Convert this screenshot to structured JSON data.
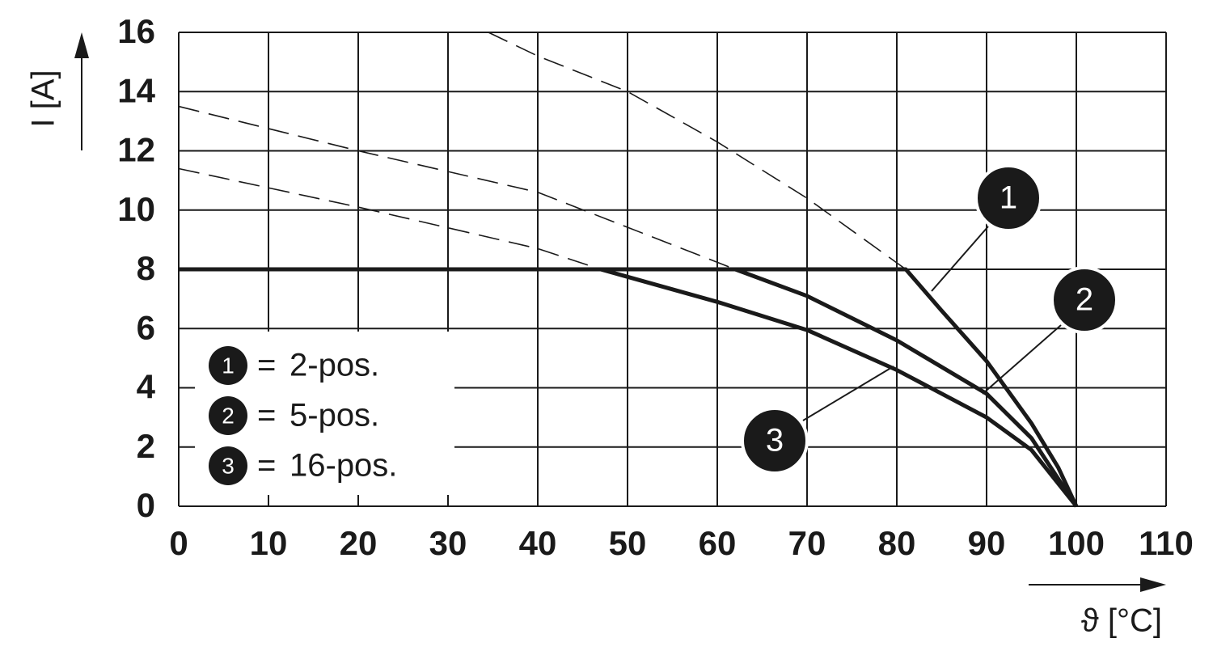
{
  "chart_data": {
    "type": "line",
    "x_label": "ϑ [°C]",
    "y_label": "I [A]",
    "xlim": [
      0,
      110
    ],
    "xticks": [
      0,
      10,
      20,
      30,
      40,
      50,
      60,
      70,
      80,
      90,
      100,
      110
    ],
    "ylim": [
      0,
      16
    ],
    "yticks": [
      0,
      2,
      4,
      6,
      8,
      10,
      12,
      14,
      16
    ],
    "grid": true,
    "legend_position": "lower left",
    "legend_separator": "=",
    "series": [
      {
        "name": "2-pos.",
        "label": "1",
        "color": "#1a1a1a",
        "x": [
          0,
          81,
          85,
          90,
          95,
          98,
          100
        ],
        "values": [
          8,
          8,
          6.6,
          4.9,
          2.8,
          1.3,
          0
        ],
        "extrapolated": {
          "x": [
            34.5,
            40,
            50,
            60,
            70,
            81
          ],
          "values": [
            16,
            15.2,
            14,
            12.3,
            10.4,
            8
          ]
        }
      },
      {
        "name": "5-pos.",
        "label": "2",
        "color": "#1a1a1a",
        "x": [
          62,
          70,
          80,
          90,
          95,
          100
        ],
        "values": [
          8,
          7.1,
          5.6,
          3.8,
          2.3,
          0
        ],
        "extrapolated": {
          "x": [
            0,
            20,
            40,
            62
          ],
          "values": [
            13.5,
            12,
            10.6,
            8
          ]
        }
      },
      {
        "name": "16-pos.",
        "label": "3",
        "color": "#1a1a1a",
        "x": [
          47,
          60,
          70,
          80,
          90,
          95,
          100
        ],
        "values": [
          8,
          6.9,
          5.95,
          4.6,
          3.0,
          1.9,
          0
        ],
        "extrapolated": {
          "x": [
            0,
            20,
            40,
            47
          ],
          "values": [
            11.4,
            10.1,
            8.7,
            8
          ]
        }
      }
    ]
  }
}
